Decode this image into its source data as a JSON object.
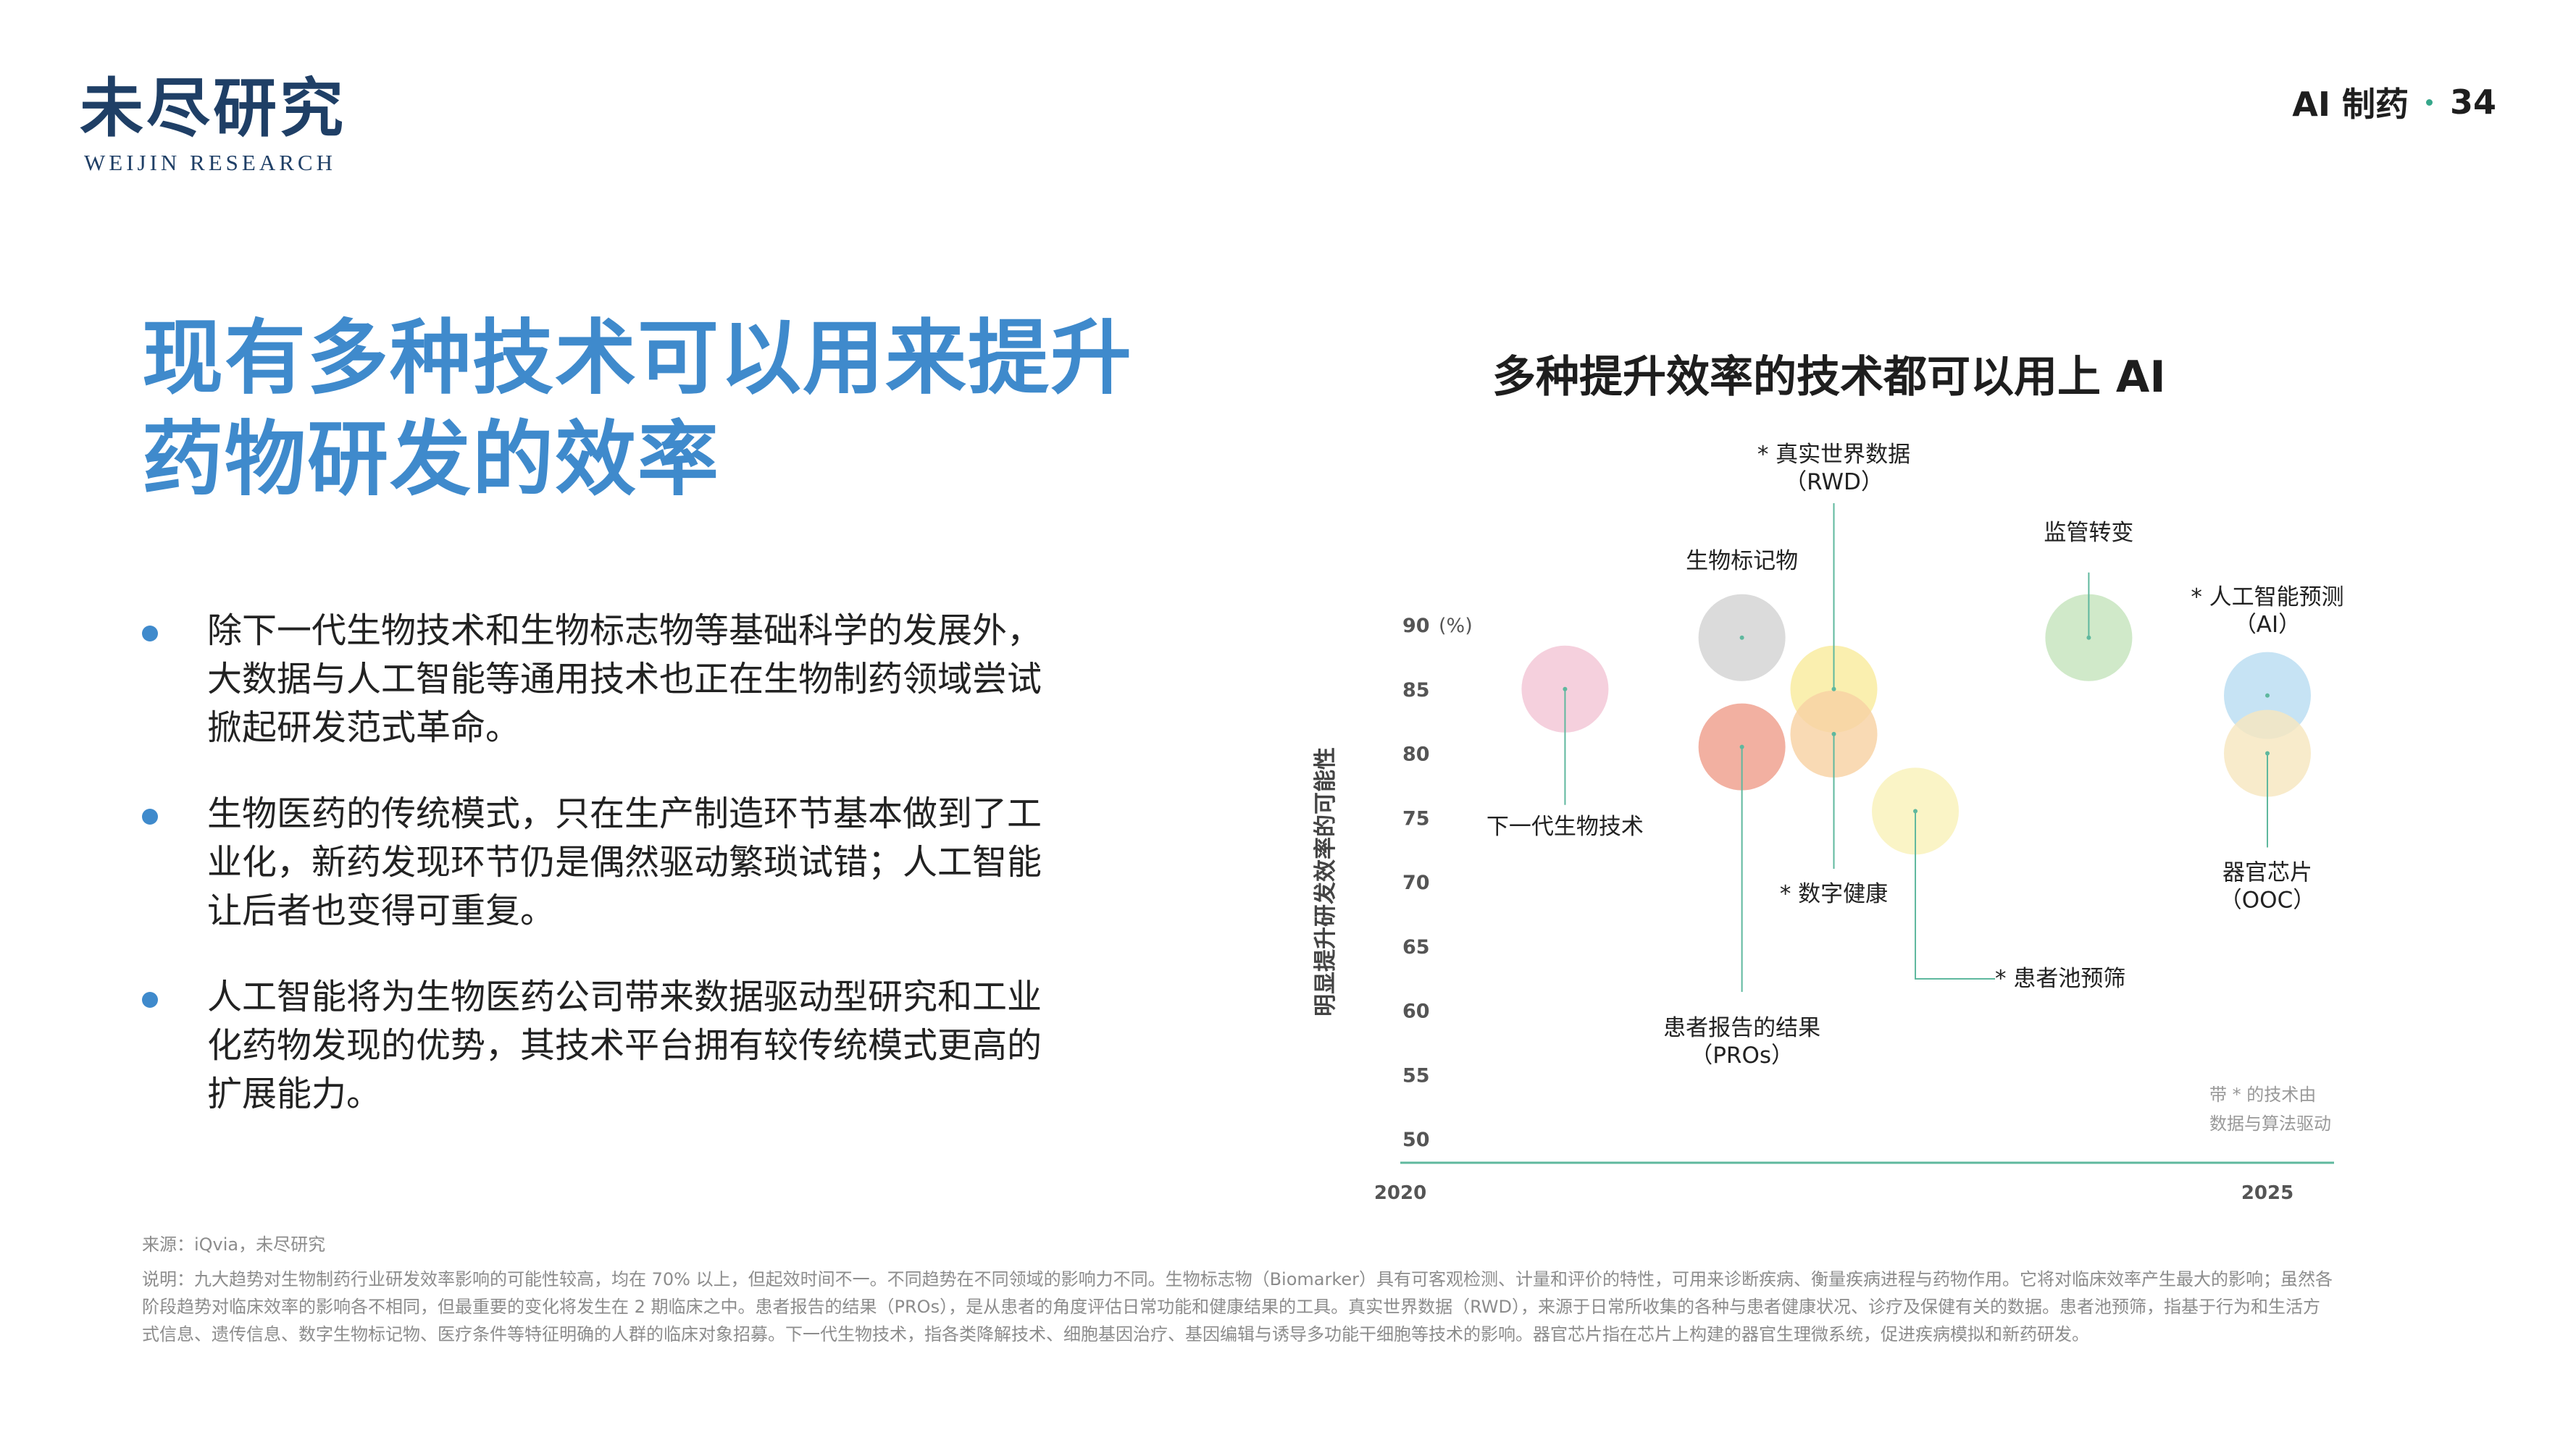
{
  "logo": {
    "cn": "未尽研究",
    "en": "WEIJIN RESEARCH"
  },
  "page_header": {
    "section": "AI 制药",
    "page": "34"
  },
  "title": {
    "line1": "现有多种技术可以用来提升",
    "line2": "药物研发的效率"
  },
  "bullets": [
    {
      "lines": [
        "除下一代生物技术和生物标志物等基础科学的发展外，",
        "大数据与人工智能等通用技术也正在生物制药领域尝试",
        "掀起研发范式革命。"
      ]
    },
    {
      "lines": [
        "生物医药的传统模式，只在生产制造环节基本做到了工",
        "业化，新药发现环节仍是偶然驱动繁琐试错；人工智能",
        "让后者也变得可重复。"
      ]
    },
    {
      "lines": [
        "人工智能将为生物医药公司带来数据驱动型研究和工业",
        "化药物发现的优势，其技术平台拥有较传统模式更高的",
        "扩展能力。"
      ]
    }
  ],
  "chart_title": "多种提升效率的技术都可以用上 AI",
  "chart_data": {
    "type": "scatter",
    "title": "多种提升效率的技术都可以用上 AI",
    "ylabel": "明显提升研发效率的可能性",
    "y_unit": "(%)",
    "xlim": [
      2020,
      2025
    ],
    "ylim": [
      50,
      90
    ],
    "x_ticks": [
      "2020",
      "2025"
    ],
    "y_ticks": [
      "90",
      "85",
      "80",
      "75",
      "70",
      "65",
      "60",
      "55",
      "50"
    ],
    "grid": false,
    "note_lines": [
      "带 * 的技术由",
      "数据与算法驱动"
    ],
    "points": [
      {
        "label": [
          "下一代生物技术"
        ],
        "x": 2020.95,
        "y": 85.0,
        "color": "#f3c6d6"
      },
      {
        "label": [
          "生物标记物"
        ],
        "x": 2021.97,
        "y": 89.0,
        "color": "#d3d3d3"
      },
      {
        "label": [
          "* 真实世界数据",
          "（RWD）"
        ],
        "x": 2022.5,
        "y": 85.0,
        "color": "#f9ec9e"
      },
      {
        "label": [
          "患者报告的结果",
          "（PROs）"
        ],
        "x": 2021.97,
        "y": 80.5,
        "color": "#ef9f8c"
      },
      {
        "label": [
          "* 数字健康"
        ],
        "x": 2022.5,
        "y": 81.5,
        "color": "#f8d2a4"
      },
      {
        "label": [
          "* 患者池预筛"
        ],
        "x": 2022.97,
        "y": 75.5,
        "color": "#f9f1b9"
      },
      {
        "label": [
          "监管转变"
        ],
        "x": 2023.97,
        "y": 89.0,
        "color": "#c6e4bd"
      },
      {
        "label": [
          "* 人工智能预测",
          "（AI）"
        ],
        "x": 2025.0,
        "y": 84.5,
        "color": "#b9ddf1"
      },
      {
        "label": [
          "器官芯片",
          "（OOC）"
        ],
        "x": 2025.0,
        "y": 80.0,
        "color": "#f6e6bf"
      }
    ]
  },
  "footer": {
    "source": "来源：iQvia，未尽研究",
    "note_lines": [
      "说明：九大趋势对生物制药行业研发效率影响的可能性较高，均在 70% 以上，但起效时间不一。不同趋势在不同领域的影响力不同。生物标志物（Biomarker）具有可客观检测、计量和评价的特性，可用来诊断疾病、衡量疾病进程与药物作用。它将对临床效率产生最大的影响；虽然各",
      "阶段趋势对临床效率的影响各不相同，但最重要的变化将发生在 2 期临床之中。患者报告的结果（PROs），是从患者的角度评估日常功能和健康结果的工具。真实世界数据（RWD），来源于日常所收集的各种与患者健康状况、诊疗及保健有关的数据。患者池预筛，指基于行为和生活方",
      "式信息、遗传信息、数字生物标记物、医疗条件等特征明确的人群的临床对象招募。下一代生物技术，指各类降解技术、细胞基因治疗、基因编辑与诱导多功能干细胞等技术的影响。器官芯片指在芯片上构建的器官生理微系统，促进疾病模拟和新药研发。"
    ]
  },
  "colors": {
    "accent": "#3f8acc",
    "axis": "#5fb89e",
    "text": "#1e1e1e",
    "muted": "#8c8c8c",
    "logo": "#1f3f66"
  }
}
